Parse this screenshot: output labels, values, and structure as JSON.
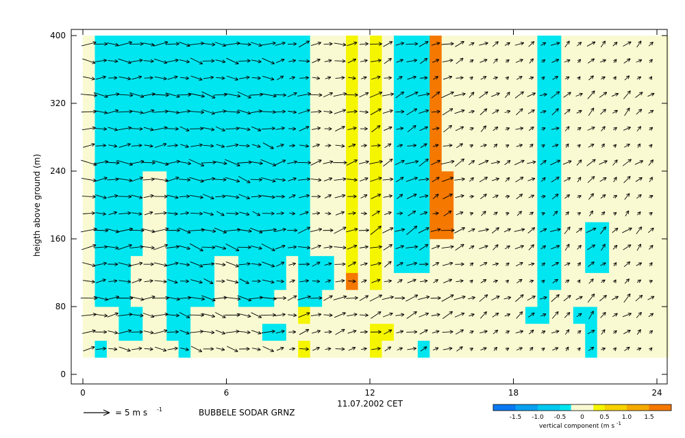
{
  "chart_data": {
    "type": "heatmap",
    "title": "",
    "xlabel": "11.07.2002 CET",
    "ylabel": "heigth above ground (m)",
    "station_label": "BUBBELE SODAR GRNZ",
    "vector_legend": {
      "label": "= 5 m s",
      "exponent": "-1",
      "reference_speed_m_s": 5
    },
    "xlim": [
      0,
      24
    ],
    "ylim": [
      0,
      400
    ],
    "x_ticks": [
      "0",
      "6",
      "12",
      "18",
      "24"
    ],
    "y_ticks": [
      "0",
      "80",
      "160",
      "240",
      "320",
      "400"
    ],
    "time_step_h": 0.5,
    "height_step_m": 20,
    "heights_m": [
      30,
      50,
      70,
      90,
      110,
      130,
      150,
      170,
      190,
      210,
      230,
      250,
      270,
      290,
      310,
      330,
      350,
      370,
      390
    ],
    "colorbar": {
      "label": "vertical component (m s",
      "exponent": "-1",
      "tick_labels": [
        "-1.5",
        "-1.0",
        "-0.5",
        "0",
        "0.5",
        "1.0",
        "1.5"
      ],
      "range": [
        -2.0,
        2.0
      ],
      "classes": [
        {
          "from": -2.0,
          "to": -1.5,
          "color": "#0a78f0"
        },
        {
          "from": -1.5,
          "to": -1.0,
          "color": "#0aa0f0"
        },
        {
          "from": -1.0,
          "to": -0.5,
          "color": "#00c8f0"
        },
        {
          "from": -0.5,
          "to": -0.25,
          "color": "#00e6f0"
        },
        {
          "from": -0.25,
          "to": 0.25,
          "color": "#fafad2"
        },
        {
          "from": 0.25,
          "to": 0.5,
          "color": "#f5f500"
        },
        {
          "from": 0.5,
          "to": 1.0,
          "color": "#f5d200"
        },
        {
          "from": 1.0,
          "to": 1.5,
          "color": "#f5aa00"
        },
        {
          "from": 1.5,
          "to": 2.0,
          "color": "#f57800"
        }
      ]
    },
    "vertical_component_m_s": [
      [
        0,
        -0.4,
        0,
        0,
        0,
        0,
        0,
        0,
        -0.4,
        0,
        0,
        0,
        0,
        0,
        0,
        0,
        0,
        0,
        0.4,
        0,
        0,
        0,
        0,
        0,
        0.4,
        0,
        0,
        0,
        -0.4,
        0,
        0,
        0,
        0,
        0,
        0,
        0,
        0,
        0,
        0,
        0,
        0,
        0,
        -0.4,
        0,
        0,
        0,
        0,
        0,
        0
      ],
      [
        0,
        0,
        0,
        -0.4,
        -0.4,
        0,
        0,
        -0.4,
        -0.4,
        0,
        0,
        0,
        0,
        0,
        0,
        -0.4,
        -0.4,
        0,
        0,
        0,
        0,
        0,
        0,
        0,
        0.4,
        0.4,
        0,
        0,
        0,
        0,
        0,
        0,
        0,
        0,
        0,
        0,
        0,
        0,
        0,
        0,
        0,
        0,
        -0.4,
        0,
        0,
        0,
        0,
        0,
        0
      ],
      [
        0,
        0,
        0,
        -0.4,
        -0.4,
        0,
        0,
        -0.4,
        -0.4,
        0,
        0,
        0,
        0,
        0,
        0,
        0,
        0,
        0,
        0.4,
        0,
        0,
        0,
        0,
        0,
        0,
        0,
        0,
        0,
        0,
        0,
        0,
        0,
        0,
        0,
        0,
        0,
        0,
        -0.4,
        -0.4,
        0,
        0,
        -0.4,
        -0.4,
        0,
        0,
        0,
        0,
        0,
        0
      ],
      [
        0,
        -0.4,
        -0.4,
        -0.4,
        0,
        0,
        0,
        -0.4,
        -0.4,
        -0.4,
        -0.4,
        0,
        0,
        -0.4,
        -0.4,
        -0.4,
        0,
        0,
        -0.4,
        -0.4,
        0,
        0,
        0,
        0,
        0,
        0,
        0,
        0,
        0,
        0,
        0,
        0,
        0,
        0,
        0,
        0,
        0,
        0,
        -0.4,
        0,
        0,
        0,
        0,
        0,
        0,
        0,
        0,
        0,
        0
      ],
      [
        0,
        -0.4,
        -0.4,
        -0.4,
        0,
        0,
        0,
        -0.4,
        -0.4,
        -0.4,
        -0.4,
        0,
        0,
        -0.4,
        -0.4,
        -0.4,
        -0.4,
        0,
        -0.4,
        -0.4,
        -0.4,
        0,
        1.6,
        0,
        0.4,
        0,
        0,
        0,
        0,
        0,
        0,
        0,
        0,
        0,
        0,
        0,
        0,
        0,
        -0.4,
        -0.4,
        0,
        0,
        0,
        0,
        0,
        0,
        0,
        0,
        0
      ],
      [
        0,
        -0.4,
        -0.4,
        -0.4,
        0,
        0,
        0,
        -0.4,
        -0.4,
        -0.4,
        -0.4,
        0,
        0,
        -0.4,
        -0.4,
        -0.4,
        -0.4,
        0,
        -0.4,
        -0.4,
        -0.4,
        0,
        0.4,
        0,
        0.4,
        0,
        -0.4,
        -0.4,
        -0.4,
        0,
        0,
        0,
        0,
        0,
        0,
        0,
        0,
        0,
        -0.4,
        -0.4,
        0,
        0,
        -0.4,
        -0.4,
        0,
        0,
        0,
        0,
        0
      ],
      [
        0,
        -0.4,
        -0.4,
        -0.4,
        -0.4,
        0,
        0,
        -0.4,
        -0.4,
        -0.4,
        -0.4,
        -0.4,
        -0.4,
        -0.4,
        -0.4,
        -0.4,
        -0.4,
        -0.4,
        -0.4,
        0,
        0,
        0,
        0.4,
        0,
        0.4,
        0,
        -0.4,
        -0.4,
        -0.4,
        0,
        0,
        0,
        0,
        0,
        0,
        0,
        0,
        0,
        -0.4,
        -0.4,
        0,
        0,
        -0.4,
        -0.4,
        0,
        0,
        0,
        0,
        0
      ],
      [
        0,
        -0.4,
        -0.4,
        -0.4,
        -0.4,
        0,
        0,
        -0.4,
        -0.4,
        -0.4,
        -0.4,
        -0.4,
        -0.4,
        -0.4,
        -0.4,
        -0.4,
        -0.4,
        -0.4,
        -0.4,
        0,
        0,
        0,
        0.4,
        0,
        0.4,
        0,
        -0.4,
        -0.4,
        -0.4,
        1.6,
        1.6,
        0,
        0,
        0,
        0,
        0,
        0,
        0,
        -0.4,
        -0.4,
        0,
        0,
        -0.4,
        -0.4,
        0,
        0,
        0,
        0,
        0
      ],
      [
        0,
        -0.4,
        -0.4,
        -0.4,
        -0.4,
        0,
        0,
        -0.4,
        -0.4,
        -0.4,
        -0.4,
        -0.4,
        -0.4,
        -0.4,
        -0.4,
        -0.4,
        -0.4,
        -0.4,
        -0.4,
        0,
        0,
        0,
        0.4,
        0,
        0.4,
        0,
        -0.4,
        -0.4,
        -0.4,
        1.6,
        1.6,
        0,
        0,
        0,
        0,
        0,
        0,
        0,
        -0.4,
        -0.4,
        0,
        0,
        0,
        0,
        0,
        0,
        0,
        0,
        0
      ],
      [
        0,
        -0.4,
        -0.4,
        -0.4,
        -0.4,
        0,
        0,
        -0.4,
        -0.4,
        -0.4,
        -0.4,
        -0.4,
        -0.4,
        -0.4,
        -0.4,
        -0.4,
        -0.4,
        -0.4,
        -0.4,
        0,
        0,
        0,
        0.4,
        0,
        0.4,
        0,
        -0.4,
        -0.4,
        -0.4,
        1.6,
        1.6,
        0,
        0,
        0,
        0,
        0,
        0,
        0,
        -0.4,
        -0.4,
        0,
        0,
        0,
        0,
        0,
        0,
        0,
        0,
        0
      ],
      [
        0,
        -0.4,
        -0.4,
        -0.4,
        -0.4,
        0,
        0,
        -0.4,
        -0.4,
        -0.4,
        -0.4,
        -0.4,
        -0.4,
        -0.4,
        -0.4,
        -0.4,
        -0.4,
        -0.4,
        -0.4,
        0,
        0,
        0,
        0.4,
        0,
        0.4,
        0,
        -0.4,
        -0.4,
        -0.4,
        1.6,
        1.6,
        0,
        0,
        0,
        0,
        0,
        0,
        0,
        -0.4,
        -0.4,
        0,
        0,
        0,
        0,
        0,
        0,
        0,
        0,
        0
      ],
      [
        0,
        -0.4,
        -0.4,
        -0.4,
        -0.4,
        -0.4,
        -0.4,
        -0.4,
        -0.4,
        -0.4,
        -0.4,
        -0.4,
        -0.4,
        -0.4,
        -0.4,
        -0.4,
        -0.4,
        -0.4,
        -0.4,
        0,
        0,
        0,
        0.4,
        0,
        0.4,
        0,
        -0.4,
        -0.4,
        -0.4,
        1.6,
        0,
        0,
        0,
        0,
        0,
        0,
        0,
        0,
        -0.4,
        -0.4,
        0,
        0,
        0,
        0,
        0,
        0,
        0,
        0,
        0
      ],
      [
        0,
        -0.4,
        -0.4,
        -0.4,
        -0.4,
        -0.4,
        -0.4,
        -0.4,
        -0.4,
        -0.4,
        -0.4,
        -0.4,
        -0.4,
        -0.4,
        -0.4,
        -0.4,
        -0.4,
        -0.4,
        -0.4,
        0,
        0,
        0,
        0.4,
        0,
        0.4,
        0,
        -0.4,
        -0.4,
        -0.4,
        1.6,
        0,
        0,
        0,
        0,
        0,
        0,
        0,
        0,
        -0.4,
        -0.4,
        0,
        0,
        0,
        0,
        0,
        0,
        0,
        0,
        0
      ],
      [
        0,
        -0.4,
        -0.4,
        -0.4,
        -0.4,
        -0.4,
        -0.4,
        -0.4,
        -0.4,
        -0.4,
        -0.4,
        -0.4,
        -0.4,
        -0.4,
        -0.4,
        -0.4,
        -0.4,
        -0.4,
        -0.4,
        0,
        0,
        0,
        0.4,
        0,
        0.4,
        0,
        -0.4,
        -0.4,
        -0.4,
        1.6,
        0,
        0,
        0,
        0,
        0,
        0,
        0,
        0,
        -0.4,
        -0.4,
        0,
        0,
        0,
        0,
        0,
        0,
        0,
        0,
        0
      ],
      [
        0,
        -0.4,
        -0.4,
        -0.4,
        -0.4,
        -0.4,
        -0.4,
        -0.4,
        -0.4,
        -0.4,
        -0.4,
        -0.4,
        -0.4,
        -0.4,
        -0.4,
        -0.4,
        -0.4,
        -0.4,
        -0.4,
        0,
        0,
        0,
        0.4,
        0,
        0.4,
        0,
        -0.4,
        -0.4,
        -0.4,
        1.6,
        0,
        0,
        0,
        0,
        0,
        0,
        0,
        0,
        -0.4,
        -0.4,
        0,
        0,
        0,
        0,
        0,
        0,
        0,
        0,
        0
      ],
      [
        0,
        -0.4,
        -0.4,
        -0.4,
        -0.4,
        -0.4,
        -0.4,
        -0.4,
        -0.4,
        -0.4,
        -0.4,
        -0.4,
        -0.4,
        -0.4,
        -0.4,
        -0.4,
        -0.4,
        -0.4,
        -0.4,
        0,
        0,
        0,
        0.4,
        0,
        0.4,
        0,
        -0.4,
        -0.4,
        -0.4,
        1.6,
        0,
        0,
        0,
        0,
        0,
        0,
        0,
        0,
        -0.4,
        -0.4,
        0,
        0,
        0,
        0,
        0,
        0,
        0,
        0,
        0
      ],
      [
        0,
        -0.4,
        -0.4,
        -0.4,
        -0.4,
        -0.4,
        -0.4,
        -0.4,
        -0.4,
        -0.4,
        -0.4,
        -0.4,
        -0.4,
        -0.4,
        -0.4,
        -0.4,
        -0.4,
        -0.4,
        -0.4,
        0,
        0,
        0,
        0.4,
        0,
        0.4,
        0,
        -0.4,
        -0.4,
        -0.4,
        1.6,
        0,
        0,
        0,
        0,
        0,
        0,
        0,
        0,
        -0.4,
        -0.4,
        0,
        0,
        0,
        0,
        0,
        0,
        0,
        0,
        0
      ],
      [
        0,
        -0.4,
        -0.4,
        -0.4,
        -0.4,
        -0.4,
        -0.4,
        -0.4,
        -0.4,
        -0.4,
        -0.4,
        -0.4,
        -0.4,
        -0.4,
        -0.4,
        -0.4,
        -0.4,
        -0.4,
        -0.4,
        0,
        0,
        0,
        0.4,
        0,
        0.4,
        0,
        -0.4,
        -0.4,
        -0.4,
        1.6,
        0,
        0,
        0,
        0,
        0,
        0,
        0,
        0,
        -0.4,
        -0.4,
        0,
        0,
        0,
        0,
        0,
        0,
        0,
        0,
        0
      ],
      [
        0,
        -0.4,
        -0.4,
        -0.4,
        -0.4,
        -0.4,
        -0.4,
        -0.4,
        -0.4,
        -0.4,
        -0.4,
        -0.4,
        -0.4,
        -0.4,
        -0.4,
        -0.4,
        -0.4,
        -0.4,
        -0.4,
        0,
        0,
        0,
        0.4,
        0,
        0.4,
        0,
        -0.4,
        -0.4,
        -0.4,
        1.6,
        0,
        0,
        0,
        0,
        0,
        0,
        0,
        0,
        -0.4,
        -0.4,
        0,
        0,
        0,
        0,
        0,
        0,
        0,
        0,
        0
      ]
    ],
    "horizontal_wind_direction_deg": [
      270,
      280,
      260,
      250,
      240,
      230
    ],
    "horizontal_wind_speed_m_s": [
      5,
      5,
      4,
      4,
      3,
      3
    ]
  }
}
